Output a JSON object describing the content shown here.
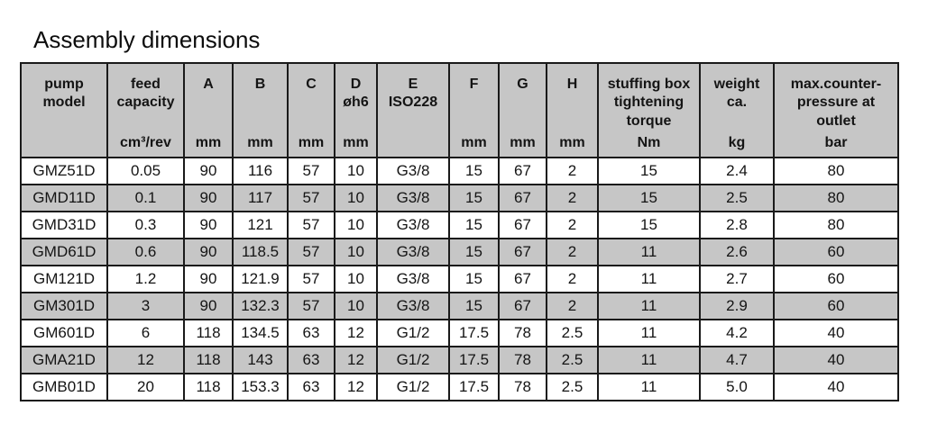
{
  "page": {
    "title": "Assembly dimensions"
  },
  "table": {
    "columns": [
      {
        "id": "pump-model",
        "label_lines": [
          "pump",
          "model"
        ],
        "unit": ""
      },
      {
        "id": "feed-capacity",
        "label_lines": [
          "feed",
          "capacity"
        ],
        "unit": "cm³/rev"
      },
      {
        "id": "dim-a",
        "label_lines": [
          "A"
        ],
        "unit": "mm"
      },
      {
        "id": "dim-b",
        "label_lines": [
          "B"
        ],
        "unit": "mm"
      },
      {
        "id": "dim-c",
        "label_lines": [
          "C"
        ],
        "unit": "mm"
      },
      {
        "id": "dim-d",
        "label_lines": [
          "D",
          "øh6"
        ],
        "unit": "mm"
      },
      {
        "id": "dim-e",
        "label_lines": [
          "E",
          "ISO228"
        ],
        "unit": ""
      },
      {
        "id": "dim-f",
        "label_lines": [
          "F"
        ],
        "unit": "mm"
      },
      {
        "id": "dim-g",
        "label_lines": [
          "G"
        ],
        "unit": "mm"
      },
      {
        "id": "dim-h",
        "label_lines": [
          "H"
        ],
        "unit": "mm"
      },
      {
        "id": "stuffing-box-torque",
        "label_lines": [
          "stuffing box",
          "tightening",
          "torque"
        ],
        "unit": "Nm"
      },
      {
        "id": "weight",
        "label_lines": [
          "weight",
          "ca."
        ],
        "unit": "kg"
      },
      {
        "id": "max-counter-pressure",
        "label_lines": [
          "max.counter-",
          "pressure at",
          "outlet"
        ],
        "unit": "bar"
      }
    ],
    "rows": [
      {
        "cells": [
          "GMZ51D",
          "0.05",
          "90",
          "116",
          "57",
          "10",
          "G3/8",
          "15",
          "67",
          "2",
          "15",
          "2.4",
          "80"
        ]
      },
      {
        "cells": [
          "GMD11D",
          "0.1",
          "90",
          "117",
          "57",
          "10",
          "G3/8",
          "15",
          "67",
          "2",
          "15",
          "2.5",
          "80"
        ]
      },
      {
        "cells": [
          "GMD31D",
          "0.3",
          "90",
          "121",
          "57",
          "10",
          "G3/8",
          "15",
          "67",
          "2",
          "15",
          "2.8",
          "80"
        ]
      },
      {
        "cells": [
          "GMD61D",
          "0.6",
          "90",
          "118.5",
          "57",
          "10",
          "G3/8",
          "15",
          "67",
          "2",
          "11",
          "2.6",
          "60"
        ]
      },
      {
        "cells": [
          "GM121D",
          "1.2",
          "90",
          "121.9",
          "57",
          "10",
          "G3/8",
          "15",
          "67",
          "2",
          "11",
          "2.7",
          "60"
        ]
      },
      {
        "cells": [
          "GM301D",
          "3",
          "90",
          "132.3",
          "57",
          "10",
          "G3/8",
          "15",
          "67",
          "2",
          "11",
          "2.9",
          "60"
        ]
      },
      {
        "cells": [
          "GM601D",
          "6",
          "118",
          "134.5",
          "63",
          "12",
          "G1/2",
          "17.5",
          "78",
          "2.5",
          "11",
          "4.2",
          "40"
        ]
      },
      {
        "cells": [
          "GMA21D",
          "12",
          "118",
          "143",
          "63",
          "12",
          "G1/2",
          "17.5",
          "78",
          "2.5",
          "11",
          "4.7",
          "40"
        ]
      },
      {
        "cells": [
          "GMB01D",
          "20",
          "118",
          "153.3",
          "63",
          "12",
          "G1/2",
          "17.5",
          "78",
          "2.5",
          "11",
          "5.0",
          "40"
        ]
      }
    ]
  },
  "colors": {
    "header_bg": "#c6c6c6",
    "stripe_bg": "#c6c6c6",
    "border": "#1a1a1a",
    "text": "#141414",
    "page_bg": "#ffffff"
  }
}
